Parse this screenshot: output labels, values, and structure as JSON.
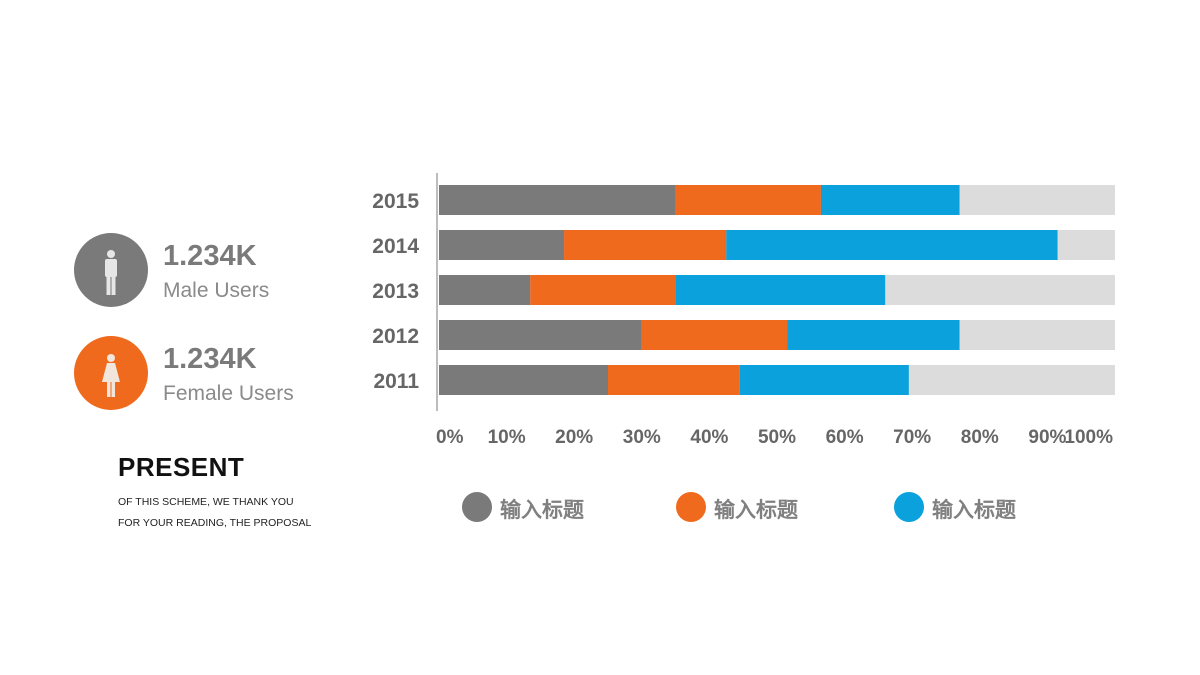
{
  "stats": [
    {
      "value": "1.234K",
      "label": "Male Users",
      "icon": "male-person-icon",
      "color": "#7a7a7a"
    },
    {
      "value": "1.234K",
      "label": "Female Users",
      "icon": "female-person-icon",
      "color": "#f06a1e"
    }
  ],
  "present": {
    "title": "PRESENT",
    "body": "OF THIS SCHEME, WE THANK YOU FOR YOUR READING, THE PROPOSAL"
  },
  "colors": {
    "gray": "#7a7a7a",
    "orange": "#f06a1e",
    "blue": "#0aa1dc",
    "track": "#dcdcdc",
    "axis_text": "#666666"
  },
  "chart_data": {
    "type": "bar",
    "orientation": "horizontal",
    "stacked": true,
    "categories": [
      "2015",
      "2014",
      "2013",
      "2012",
      "2011"
    ],
    "series": [
      {
        "name": "输入标题",
        "color": "#7a7a7a",
        "values": [
          35,
          18.5,
          13.5,
          30,
          25
        ]
      },
      {
        "name": "输入标题",
        "color": "#f06a1e",
        "values": [
          21.5,
          24,
          21.5,
          21.5,
          19.5
        ]
      },
      {
        "name": "输入标题",
        "color": "#0aa1dc",
        "values": [
          20.5,
          49,
          31,
          25.5,
          25
        ]
      }
    ],
    "x_ticks": [
      "0%",
      "10%",
      "20%",
      "30%",
      "40%",
      "50%",
      "60%",
      "70%",
      "80%",
      "90%",
      "100%"
    ],
    "xlim": [
      0,
      100
    ],
    "grid": false,
    "legend_position": "bottom"
  }
}
